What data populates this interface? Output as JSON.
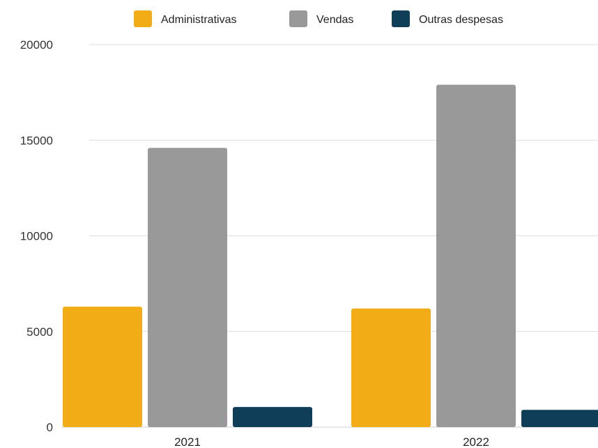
{
  "chart_data": {
    "type": "bar",
    "categories": [
      "2021",
      "2022"
    ],
    "series": [
      {
        "name": "Administrativas",
        "color": "#f2ac16",
        "values": [
          6300,
          6200
        ]
      },
      {
        "name": "Vendas",
        "color": "#999999",
        "values": [
          14600,
          17900
        ]
      },
      {
        "name": "Outras despesas",
        "color": "#0e3e58",
        "values": [
          1050,
          900
        ]
      }
    ],
    "title": "",
    "xlabel": "",
    "ylabel": "",
    "ylim": [
      0,
      20000
    ],
    "yticks": [
      "0",
      "5000",
      "10000",
      "15000",
      "20000"
    ],
    "grid": true,
    "legend_position": "top"
  }
}
